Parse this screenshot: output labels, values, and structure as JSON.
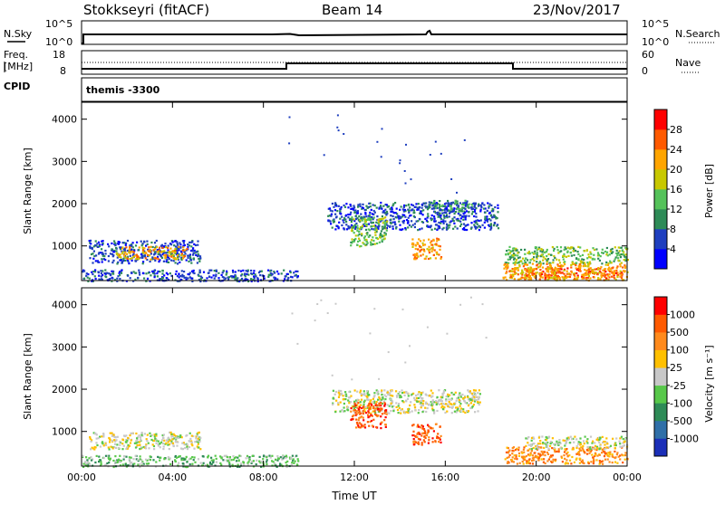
{
  "header": {
    "station": "Stokkseyri (fitACF)",
    "beam": "Beam 14",
    "date": "23/Nov/2017"
  },
  "nsky_panel": {
    "left_label": "N.Sky",
    "right_label": "N.Search",
    "left_ticks": [
      "10^5",
      "10^0"
    ],
    "right_ticks": [
      "10^5",
      "10^0"
    ]
  },
  "freq_panel": {
    "left_label_1": "Freq.",
    "left_label_2": "[MHz]",
    "right_label": "Nave",
    "left_ticks": [
      "18",
      "8"
    ],
    "right_ticks": [
      "60",
      "0"
    ],
    "cpid_label": "CPID",
    "cpid_value": "themis -3300",
    "freq_steps": [
      [
        0,
        8.4
      ],
      [
        9,
        9.5
      ],
      [
        19,
        8.4
      ],
      [
        24,
        8.4
      ]
    ],
    "nave_level": 20
  },
  "chart_data": [
    {
      "type": "heatmap",
      "name_hint": "power",
      "ylabel": "Slant Range [km]",
      "x_ticks": [
        "00:00",
        "04:00",
        "08:00",
        "12:00",
        "16:00",
        "20:00",
        "00:00"
      ],
      "y_ticks": [
        "1000",
        "2000",
        "3000",
        "4000"
      ],
      "xlim": [
        0,
        24
      ],
      "ylim": [
        180,
        4400
      ],
      "colorbar": {
        "label": "Power [dB]",
        "ticks": [
          "28",
          "24",
          "20",
          "16",
          "12",
          "8",
          "4"
        ],
        "range": [
          0,
          32
        ],
        "colors": [
          "#0000ff",
          "#1f3fbf",
          "#2e8b57",
          "#55c25a",
          "#c8c800",
          "#ffa500",
          "#ff5a00",
          "#ff0000"
        ]
      },
      "echo_regions": [
        {
          "x": [
            0.3,
            5.2
          ],
          "y": [
            600,
            1150
          ],
          "level": 1
        },
        {
          "x": [
            1.5,
            4.6
          ],
          "y": [
            700,
            1000
          ],
          "level": 5
        },
        {
          "x": [
            0,
            9.5
          ],
          "y": [
            180,
            450
          ],
          "level": 1
        },
        {
          "x": [
            10.8,
            18.3
          ],
          "y": [
            1400,
            2050
          ],
          "level": 1
        },
        {
          "x": [
            11.8,
            13.4
          ],
          "y": [
            1000,
            1700
          ],
          "level": 3
        },
        {
          "x": [
            14.5,
            15.8
          ],
          "y": [
            700,
            1200
          ],
          "level": 5
        },
        {
          "x": [
            15.2,
            17.2
          ],
          "y": [
            1800,
            2100
          ],
          "level": 2
        },
        {
          "x": [
            18.6,
            24
          ],
          "y": [
            600,
            1000
          ],
          "level": 3
        },
        {
          "x": [
            19.2,
            23.8
          ],
          "y": [
            250,
            500
          ],
          "level": 6
        },
        {
          "x": [
            18.5,
            24
          ],
          "y": [
            200,
            600
          ],
          "level": 5
        }
      ]
    },
    {
      "type": "heatmap",
      "name_hint": "velocity",
      "ylabel": "Slant Range [km]",
      "xlabel": "Time UT",
      "x_ticks": [
        "00:00",
        "04:00",
        "08:00",
        "12:00",
        "16:00",
        "20:00",
        "00:00"
      ],
      "y_ticks": [
        "1000",
        "2000",
        "3000",
        "4000"
      ],
      "xlim": [
        0,
        24
      ],
      "ylim": [
        180,
        4400
      ],
      "colorbar": {
        "label": "Velocity [m s⁻¹]",
        "ticks": [
          "1000",
          "500",
          "100",
          "25",
          "-25",
          "-100",
          "-500",
          "-1000"
        ],
        "colors": [
          "#1b2fb8",
          "#2f6fa8",
          "#2e8b57",
          "#58c84a",
          "#c8c8c8",
          "#ffc000",
          "#ff8a1c",
          "#ff5a00",
          "#ff0000"
        ]
      },
      "echo_regions": [
        {
          "x": [
            0.3,
            5.2
          ],
          "y": [
            600,
            1000
          ],
          "level": 4
        },
        {
          "x": [
            0,
            9.5
          ],
          "y": [
            180,
            450
          ],
          "level": 3
        },
        {
          "x": [
            11.0,
            17.5
          ],
          "y": [
            1450,
            2000
          ],
          "level": 4
        },
        {
          "x": [
            11.8,
            13.4
          ],
          "y": [
            1100,
            1700
          ],
          "level": 7
        },
        {
          "x": [
            14.5,
            15.8
          ],
          "y": [
            700,
            1200
          ],
          "level": 7
        },
        {
          "x": [
            18.6,
            24
          ],
          "y": [
            250,
            650
          ],
          "level": 6
        },
        {
          "x": [
            19.5,
            24
          ],
          "y": [
            600,
            900
          ],
          "level": 4
        }
      ]
    }
  ],
  "colors": {
    "frame": "#000000",
    "nodata": "#ffffff"
  }
}
